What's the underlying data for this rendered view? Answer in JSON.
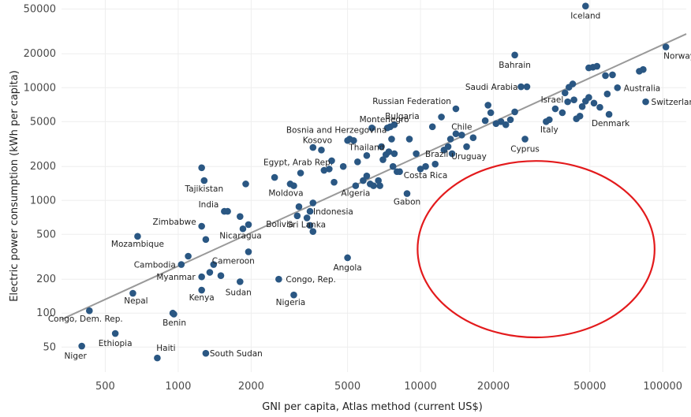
{
  "chart_data": {
    "type": "scatter",
    "title": "",
    "xlabel": "GNI per capita, Atlas method (current US$)",
    "ylabel": "Electric power consumption (kWh per capita)",
    "x_scale": "log",
    "y_scale": "log",
    "xlim": [
      330,
      125000
    ],
    "ylim": [
      30,
      60000
    ],
    "x_ticks": [
      500,
      1000,
      2000,
      5000,
      10000,
      20000,
      50000,
      100000
    ],
    "y_ticks": [
      50,
      100,
      200,
      500,
      1000,
      2000,
      5000,
      10000,
      20000,
      50000
    ],
    "x_tick_labels": [
      "500",
      "1000",
      "2000",
      "5000",
      "10000",
      "20000",
      "50000",
      "100000"
    ],
    "y_tick_labels": [
      "50",
      "100",
      "200",
      "500",
      "1000",
      "2000",
      "5000",
      "10000",
      "20000",
      "50000"
    ],
    "grid": true,
    "point_color": "#2a5783",
    "trendline": {
      "color": "#999999",
      "points": [
        [
          330,
          88
        ],
        [
          125000,
          30000
        ]
      ]
    },
    "annotation_ellipse": {
      "color": "#e31a1c"
    },
    "labeled_points": [
      {
        "label": "Iceland",
        "x": 48000,
        "y": 53000
      },
      {
        "label": "Norway",
        "x": 103000,
        "y": 23000
      },
      {
        "label": "Bahrain",
        "x": 24500,
        "y": 19500
      },
      {
        "label": "Australia",
        "x": 65000,
        "y": 10000
      },
      {
        "label": "Saudi Arabia",
        "x": 26000,
        "y": 10200
      },
      {
        "label": "Russian Federation",
        "x": 14000,
        "y": 6500
      },
      {
        "label": "Switzerland",
        "x": 85000,
        "y": 7500
      },
      {
        "label": "Israel",
        "x": 36000,
        "y": 6500
      },
      {
        "label": "Denmark",
        "x": 60000,
        "y": 5800
      },
      {
        "label": "Montenegro",
        "x": 7300,
        "y": 4400
      },
      {
        "label": "Bulgaria",
        "x": 7800,
        "y": 4700
      },
      {
        "label": "Chile",
        "x": 14800,
        "y": 3800
      },
      {
        "label": "Italy",
        "x": 34000,
        "y": 5200
      },
      {
        "label": "Bosnia and Herzegovina",
        "x": 5000,
        "y": 3400
      },
      {
        "label": "Uruguay",
        "x": 15500,
        "y": 3000
      },
      {
        "label": "Cyprus",
        "x": 27000,
        "y": 3500
      },
      {
        "label": "Kosovo",
        "x": 3900,
        "y": 2800
      },
      {
        "label": "Egypt, Arab Rep.",
        "x": 3200,
        "y": 1750
      },
      {
        "label": "Thailand",
        "x": 6000,
        "y": 2500
      },
      {
        "label": "Brazil",
        "x": 11500,
        "y": 2100
      },
      {
        "label": "Costa Rica",
        "x": 10500,
        "y": 2000
      },
      {
        "label": "Tajikistan",
        "x": 1280,
        "y": 1500
      },
      {
        "label": "Moldova",
        "x": 3000,
        "y": 1350
      },
      {
        "label": "Algeria",
        "x": 5400,
        "y": 1350
      },
      {
        "label": "Gabon",
        "x": 8800,
        "y": 1150
      },
      {
        "label": "Indonesia",
        "x": 3500,
        "y": 800
      },
      {
        "label": "India",
        "x": 1550,
        "y": 800
      },
      {
        "label": "Zimbabwe",
        "x": 1250,
        "y": 590
      },
      {
        "label": "Bolivia",
        "x": 3100,
        "y": 730
      },
      {
        "label": "Nicaragua",
        "x": 1850,
        "y": 560
      },
      {
        "label": "Mozambique",
        "x": 680,
        "y": 480
      },
      {
        "label": "Sri Lanka",
        "x": 3600,
        "y": 530
      },
      {
        "label": "Cambodia",
        "x": 1030,
        "y": 270
      },
      {
        "label": "Cameroon",
        "x": 1400,
        "y": 270
      },
      {
        "label": "Myanmar",
        "x": 1250,
        "y": 210
      },
      {
        "label": "Angola",
        "x": 5000,
        "y": 310
      },
      {
        "label": "Congo, Rep.",
        "x": 2600,
        "y": 200
      },
      {
        "label": "Sudan",
        "x": 1800,
        "y": 190
      },
      {
        "label": "Nepal",
        "x": 650,
        "y": 150
      },
      {
        "label": "Kenya",
        "x": 1250,
        "y": 160
      },
      {
        "label": "Nigeria",
        "x": 3000,
        "y": 145
      },
      {
        "label": "Congo, Dem. Rep.",
        "x": 430,
        "y": 105
      },
      {
        "label": "Benin",
        "x": 950,
        "y": 100
      },
      {
        "label": "Ethiopia",
        "x": 550,
        "y": 66
      },
      {
        "label": "Niger",
        "x": 400,
        "y": 51
      },
      {
        "label": "Haiti",
        "x": 820,
        "y": 40
      },
      {
        "label": "South Sudan",
        "x": 1300,
        "y": 44
      }
    ],
    "unlabeled_points": [
      [
        1250,
        1950
      ],
      [
        1900,
        1400
      ],
      [
        1600,
        800
      ],
      [
        1800,
        720
      ],
      [
        1950,
        610
      ],
      [
        1300,
        450
      ],
      [
        1100,
        320
      ],
      [
        1950,
        350
      ],
      [
        1350,
        230
      ],
      [
        1500,
        215
      ],
      [
        960,
        98
      ],
      [
        2500,
        1600
      ],
      [
        2900,
        1400
      ],
      [
        3150,
        880
      ],
      [
        3600,
        950
      ],
      [
        3400,
        700
      ],
      [
        3500,
        600
      ],
      [
        3600,
        2950
      ],
      [
        4200,
        1900
      ],
      [
        4400,
        1450
      ],
      [
        4800,
        2000
      ],
      [
        4300,
        2250
      ],
      [
        4000,
        1850
      ],
      [
        5300,
        3400
      ],
      [
        5100,
        3500
      ],
      [
        5500,
        2200
      ],
      [
        5800,
        1500
      ],
      [
        6000,
        1650
      ],
      [
        6200,
        1400
      ],
      [
        6400,
        1350
      ],
      [
        6700,
        1500
      ],
      [
        6800,
        1350
      ],
      [
        6300,
        4400
      ],
      [
        6900,
        3000
      ],
      [
        7000,
        2300
      ],
      [
        7200,
        2550
      ],
      [
        7400,
        2700
      ],
      [
        7600,
        3500
      ],
      [
        7700,
        2000
      ],
      [
        7800,
        2600
      ],
      [
        8000,
        1800
      ],
      [
        7500,
        4500
      ],
      [
        8200,
        1800
      ],
      [
        9000,
        3500
      ],
      [
        9600,
        2600
      ],
      [
        10000,
        1900
      ],
      [
        11200,
        4500
      ],
      [
        12200,
        5500
      ],
      [
        12500,
        2800
      ],
      [
        13000,
        3000
      ],
      [
        13500,
        2600
      ],
      [
        13300,
        3500
      ],
      [
        14000,
        3900
      ],
      [
        16500,
        3600
      ],
      [
        18500,
        5100
      ],
      [
        19000,
        7000
      ],
      [
        19500,
        6000
      ],
      [
        20500,
        4800
      ],
      [
        21500,
        5000
      ],
      [
        22500,
        4700
      ],
      [
        23500,
        5200
      ],
      [
        24500,
        6100
      ],
      [
        27500,
        10200
      ],
      [
        33000,
        5000
      ],
      [
        38500,
        6000
      ],
      [
        39500,
        9000
      ],
      [
        40500,
        7500
      ],
      [
        41000,
        10100
      ],
      [
        42500,
        10800
      ],
      [
        43000,
        7800
      ],
      [
        44000,
        5300
      ],
      [
        45500,
        5600
      ],
      [
        46500,
        6800
      ],
      [
        48000,
        7600
      ],
      [
        49500,
        8200
      ],
      [
        49500,
        15000
      ],
      [
        51500,
        15200
      ],
      [
        53500,
        15500
      ],
      [
        52000,
        7300
      ],
      [
        55000,
        6700
      ],
      [
        58000,
        12800
      ],
      [
        59000,
        8800
      ],
      [
        62000,
        13000
      ],
      [
        80000,
        14000
      ],
      [
        83000,
        14500
      ]
    ]
  }
}
